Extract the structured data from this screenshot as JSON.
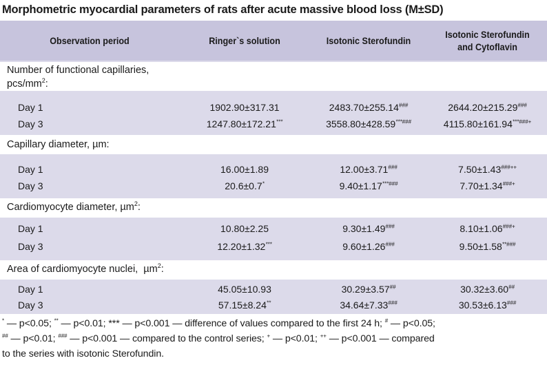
{
  "title": "Morphometric myocardial parameters of rats after acute massive blood loss (M±SD)",
  "headers": {
    "period": "Observation period",
    "ringer": "Ringer`s solution",
    "isotonic": "Isotonic Sterofundin",
    "isotonic_cyto_line1": "Isotonic Sterofundin",
    "isotonic_cyto_line2": "and Cytoflavin"
  },
  "groups": [
    {
      "label_line1": "Number of functional capillaries,",
      "label_line2": "pcs/mm",
      "label_sup": "2",
      "label_tail": ":",
      "rows": [
        {
          "day": "Day 1",
          "ringer": "1902.90±317.31",
          "ringer_sup": "",
          "iso": "2483.70±255.14",
          "iso_sup": "###",
          "cyto": "2644.20±215.29",
          "cyto_sup": "###"
        },
        {
          "day": "Day 3",
          "ringer": "1247.80±172.21",
          "ringer_sup": "***",
          "iso": "3558.80±428.59",
          "iso_sup": "***###",
          "cyto": "4115.80±161.94",
          "cyto_sup": "***###+"
        }
      ]
    },
    {
      "label_line1": "Capillary diameter, µm:",
      "rows": [
        {
          "day": "Day 1",
          "ringer": "16.00±1.89",
          "ringer_sup": "",
          "iso": "12.00±3.71",
          "iso_sup": "###",
          "cyto": "7.50±1.43",
          "cyto_sup": "###++"
        },
        {
          "day": "Day 3",
          "ringer": "20.6±0.7",
          "ringer_sup": "*",
          "iso": "9.40±1.17",
          "iso_sup": "***###",
          "cyto": "7.70±1.34",
          "cyto_sup": "###+"
        }
      ]
    },
    {
      "label_line1": "Cardiomyocyte diameter, µm",
      "label_sup": "2",
      "label_tail": ":",
      "rows": [
        {
          "day": "Day 1",
          "ringer": "10.80±2.25",
          "ringer_sup": "",
          "iso": "9.30±1.49",
          "iso_sup": "###",
          "cyto": "8.10±1.06",
          "cyto_sup": "###+"
        },
        {
          "day": "Day 3",
          "ringer": "12.20±1.32",
          "ringer_sup": "***",
          "iso": "9.60±1.26",
          "iso_sup": "###",
          "cyto": "9.50±1.58",
          "cyto_sup": "**###"
        }
      ]
    },
    {
      "label_line1": "Area of cardiomyocyte nuclei,  µm",
      "label_sup": "2",
      "label_tail": ":",
      "rows": [
        {
          "day": "Day 1",
          "ringer": "45.05±10.93",
          "ringer_sup": "",
          "iso": "30.29±3.57",
          "iso_sup": "##",
          "cyto": "30.32±3.60",
          "cyto_sup": "##"
        },
        {
          "day": "Day 3",
          "ringer": "57.15±8.24",
          "ringer_sup": "**",
          "iso": "34.64±7.33",
          "iso_sup": "###",
          "cyto": "30.53±6.13",
          "cyto_sup": "###"
        }
      ]
    }
  ],
  "footnote": {
    "s1": "*",
    "t1": " — p<0.05; ",
    "s2": "**",
    "t2": " — p<0.01; *** — p<0.001 — difference of values compared to the first 24 h; ",
    "s3": "#",
    "t3": " — p<0.05;",
    "s4": "##",
    "t4": " — p<0.01; ",
    "s5": "###",
    "t5": " — p<0.001 — compared to the control series; ",
    "s6": "+",
    "t6": " — p<0.01; ",
    "s7": "++",
    "t7": " — p<0.001 — compared",
    "line3": "to the series with isotonic Sterofundin."
  }
}
